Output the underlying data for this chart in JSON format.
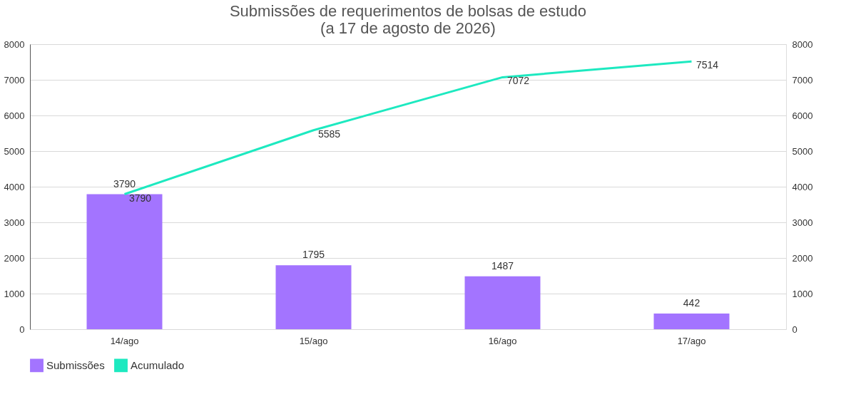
{
  "chart_data": {
    "type": "bar",
    "title": "Submissões de requerimentos de bolsas de estudo\n(a 17 de agosto de 2026)",
    "categories": [
      "14/ago",
      "15/ago",
      "16/ago",
      "17/ago"
    ],
    "series": [
      {
        "name": "Submissões",
        "color": "#a374ff",
        "values": [
          3790,
          1795,
          1487,
          442
        ]
      },
      {
        "name": "Acumulado",
        "type": "line",
        "axis": "y2",
        "color": "#1de9c0",
        "values": [
          3790,
          5585,
          7072,
          7514
        ]
      }
    ],
    "ylim": [
      0,
      8000
    ],
    "yticks": [
      0,
      1000,
      2000,
      3000,
      4000,
      5000,
      6000,
      7000,
      8000
    ],
    "y2lim": [
      0,
      8000
    ],
    "y2ticks": [
      0,
      1000,
      2000,
      3000,
      4000,
      5000,
      6000,
      7000,
      8000
    ],
    "grid": "y",
    "legend": "bottom",
    "data_labels": true,
    "marker": "none",
    "line_style": "solid"
  }
}
